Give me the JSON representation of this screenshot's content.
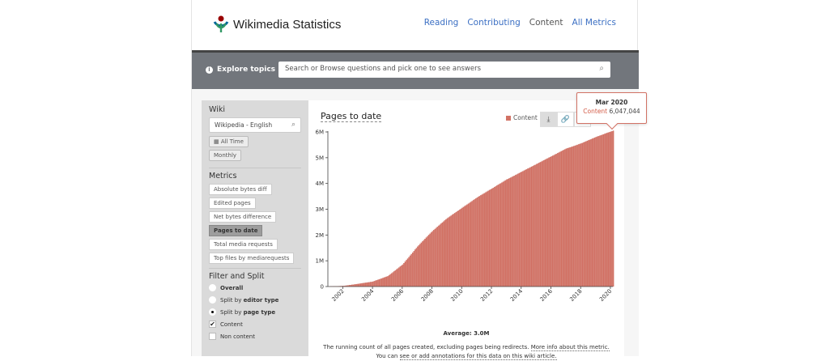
{
  "header": {
    "brand": "Wikimedia Statistics",
    "nav": [
      {
        "label": "Reading",
        "active": false
      },
      {
        "label": "Contributing",
        "active": false
      },
      {
        "label": "Content",
        "active": true
      },
      {
        "label": "All Metrics",
        "active": false
      }
    ]
  },
  "topbar": {
    "explore_label": "Explore topics",
    "explore_icon": "info-icon",
    "search_placeholder": "Search or Browse questions and pick one to see answers"
  },
  "sidebar": {
    "wiki_title": "Wiki",
    "wiki_value": "Wikipedia - English",
    "time_range": "All Time",
    "granularity": "Monthly",
    "metrics_title": "Metrics",
    "metrics": [
      {
        "label": "Absolute bytes diff",
        "active": false
      },
      {
        "label": "Edited pages",
        "active": false
      },
      {
        "label": "Net bytes difference",
        "active": false
      },
      {
        "label": "Pages to date",
        "active": true
      },
      {
        "label": "Total media requests",
        "active": false
      },
      {
        "label": "Top files by mediarequests",
        "active": false
      }
    ],
    "filter_title": "Filter and Split",
    "filter_options": {
      "overall": "Overall",
      "split_editor_prefix": "Split by ",
      "split_editor_bold": "editor type",
      "split_page_prefix": "Split by ",
      "split_page_bold": "page type"
    },
    "checkboxes": [
      {
        "label": "Content",
        "checked": true
      },
      {
        "label": "Non content",
        "checked": false
      }
    ]
  },
  "main": {
    "title": "Pages to date",
    "legend_label": "Content",
    "average": "Average: 3.0M",
    "description": "The running count of all pages created, excluding pages being redirects.",
    "more_info_link": "More info about this metric.",
    "annotation_prefix": "You can",
    "annotation_link": "see or add annotations for this data on this wiki article."
  },
  "tooltip": {
    "date": "Mar 2020",
    "series": "Content",
    "value": "6,047,044"
  },
  "colors": {
    "bar": "#d27265",
    "link": "#3b6fc3",
    "topbar": "#72767c"
  },
  "chart_data": {
    "type": "bar",
    "title": "Pages to date",
    "xlabel": "",
    "ylabel": "",
    "x_ticks": [
      "2002",
      "2004",
      "2006",
      "2008",
      "2010",
      "2012",
      "2014",
      "2016",
      "2018",
      "2020"
    ],
    "y_ticks": [
      "0",
      "1M",
      "2M",
      "3M",
      "4M",
      "5M",
      "6M"
    ],
    "ylim": [
      0,
      6000000
    ],
    "series": [
      {
        "name": "Content",
        "color": "#d27265",
        "x": [
          "2001-01",
          "2002-01",
          "2003-01",
          "2004-01",
          "2005-01",
          "2006-01",
          "2007-01",
          "2008-01",
          "2009-01",
          "2010-01",
          "2011-01",
          "2012-01",
          "2013-01",
          "2014-01",
          "2015-01",
          "2016-01",
          "2017-01",
          "2018-01",
          "2019-01",
          "2020-03"
        ],
        "values": [
          0,
          20000,
          100000,
          190000,
          400000,
          850000,
          1550000,
          2150000,
          2650000,
          3050000,
          3450000,
          3800000,
          4150000,
          4450000,
          4750000,
          5050000,
          5350000,
          5550000,
          5800000,
          6047044
        ]
      }
    ],
    "average": 3000000,
    "grid": false,
    "legend_position": "top-right"
  }
}
